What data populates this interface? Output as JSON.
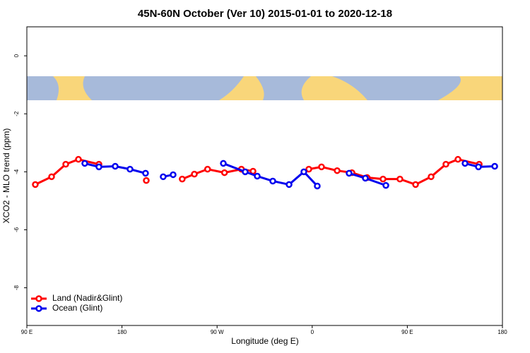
{
  "chart_data": {
    "type": "line",
    "title": "45N-60N October (Ver 10)   2015-01-01 to 2020-12-18",
    "x_label": "Longitude (deg E)",
    "y_label": "XCO2 - MLO trend (ppm)",
    "xlim": [
      90,
      540
    ],
    "ylim": [
      -9.3,
      1.0
    ],
    "xticks": [
      {
        "value": 90,
        "label": "90 E"
      },
      {
        "value": 180,
        "label": "180"
      },
      {
        "value": 270,
        "label": "90 W"
      },
      {
        "value": 360,
        "label": "0"
      },
      {
        "value": 450,
        "label": "90 E"
      },
      {
        "value": 540,
        "label": "180"
      }
    ],
    "yticks": [
      0,
      -2,
      -4,
      -6,
      -8
    ],
    "legend": "bottomleft",
    "series": [
      {
        "name": "Land (Nadir&Glint)",
        "color": "#ff0000",
        "x": [
          98,
          113.4,
          126.8,
          138.8,
          158.2,
          null,
          203,
          null,
          237,
          248.5,
          261,
          277,
          293,
          304,
          null,
          356.8,
          368.8,
          383.6,
          397.6,
          412,
          427,
          443,
          457.8,
          472.5,
          486.5,
          497.9,
          518
        ],
        "values": [
          -4.44,
          -4.17,
          -3.74,
          -3.57,
          -3.74,
          null,
          -4.3,
          null,
          -4.25,
          -4.08,
          -3.91,
          -4.03,
          -3.91,
          -3.98,
          null,
          -3.91,
          -3.83,
          -3.96,
          -4.03,
          -4.2,
          -4.25,
          -4.25,
          -4.44,
          -4.17,
          -3.74,
          -3.57,
          -3.74
        ]
      },
      {
        "name": "Ocean (Glint)",
        "color": "#0000ee",
        "x": [
          144.8,
          158.2,
          173.6,
          187.6,
          202.3,
          null,
          219,
          228.4,
          null,
          275.9,
          296.6,
          308,
          322.7,
          338.1,
          352.1,
          364.8,
          null,
          394.9,
          410.3,
          429.7,
          null,
          504.6,
          517.3,
          532.7
        ],
        "values": [
          -3.71,
          -3.83,
          -3.81,
          -3.91,
          -4.05,
          null,
          -4.17,
          -4.1,
          null,
          -3.71,
          -4.0,
          -4.15,
          -4.32,
          -4.44,
          -4.0,
          -4.49,
          null,
          -4.05,
          -4.22,
          -4.47,
          null,
          -3.71,
          -3.83,
          -3.81
        ]
      }
    ]
  }
}
